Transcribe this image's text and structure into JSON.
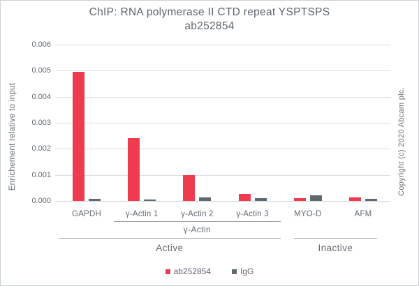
{
  "title": {
    "line1": "ChIP: RNA polymerase II CTD repeat YSPTSPS",
    "line2": "ab252854"
  },
  "y_axis": {
    "label": "Enrichement relative to input"
  },
  "copyright": "Copyright (c) 2020 Abcam plc.",
  "legend": [
    {
      "label": "ab252854",
      "color": "#ef3b4f"
    },
    {
      "label": "IgG",
      "color": "#5f6a70"
    }
  ],
  "colors": {
    "bar_red": "#ef3b4f",
    "bar_gray": "#5f6a70",
    "gridline": "#dadde0",
    "text": "#5e666f"
  },
  "chart_data": {
    "type": "bar",
    "title": "ChIP: RNA polymerase II CTD repeat YSPTSPS ab252854",
    "xlabel": "",
    "ylabel": "Enrichement relative to input",
    "categories": [
      "GAPDH",
      "γ-Actin 1",
      "γ-Actin 2",
      "γ-Actin 3",
      "MYO-D",
      "AFM"
    ],
    "series": [
      {
        "name": "ab252854",
        "color": "#ef3b4f",
        "values": [
          0.00495,
          0.0024,
          0.001,
          0.00027,
          0.0001,
          0.00014
        ]
      },
      {
        "name": "IgG",
        "color": "#5f6a70",
        "values": [
          8e-05,
          5e-05,
          0.00013,
          0.00011,
          0.00021,
          7e-05
        ]
      }
    ],
    "ylim": [
      0,
      0.006
    ],
    "ytick_step": 0.001,
    "ytick_decimals": 3,
    "grid": true,
    "legend_position": "bottom",
    "groups": [
      {
        "label": "γ-Actin",
        "from": 1,
        "to": 3,
        "row": 1
      },
      {
        "label": "Active",
        "from": 0,
        "to": 3,
        "row": 2
      },
      {
        "label": "Inactive",
        "from": 4,
        "to": 5,
        "row": 2
      }
    ]
  }
}
